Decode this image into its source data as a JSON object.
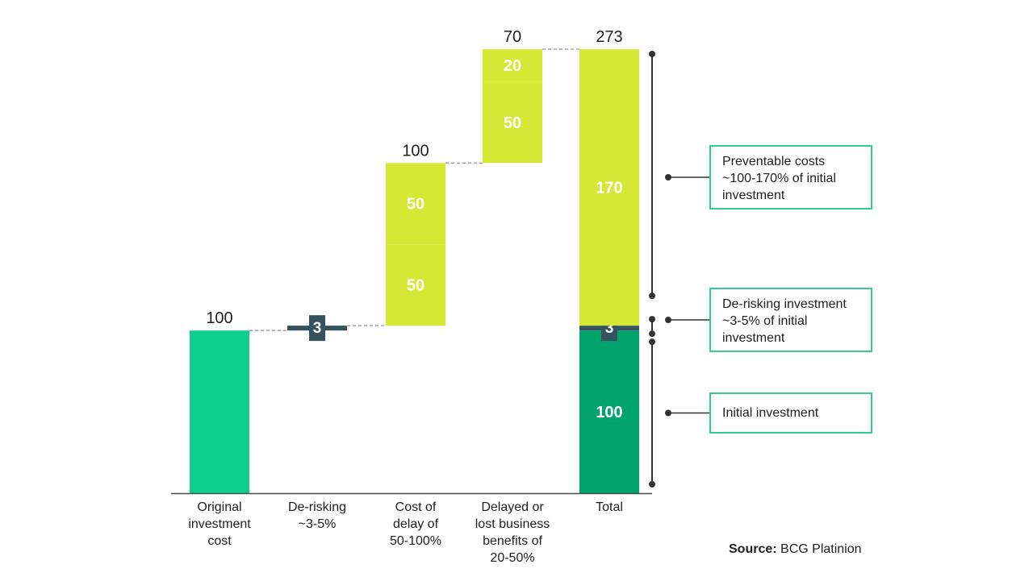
{
  "chart_data": {
    "type": "waterfall",
    "title": "",
    "xlabel": "",
    "ylabel": "",
    "ylim": [
      0,
      273
    ],
    "colors": {
      "initial": "#0fcf8f",
      "initial_dark": "#00a36c",
      "cost": "#d4e835",
      "derisk": "#36525f",
      "connector": "#9aa7ad",
      "bracket": "#333333",
      "legend_border": "#2fce8d"
    },
    "categories": [
      {
        "key": "original",
        "lines": [
          "Original",
          "investment",
          "cost"
        ],
        "total_label": "100",
        "segments": [
          {
            "start": 0,
            "value": 100,
            "kind": "initial",
            "label": ""
          }
        ]
      },
      {
        "key": "derisking",
        "lines": [
          "De-risking",
          "~3-5%"
        ],
        "total_label": "",
        "segments": [
          {
            "start": 100,
            "value": 3,
            "kind": "derisk",
            "label": "3"
          }
        ]
      },
      {
        "key": "delay",
        "lines": [
          "Cost of",
          "delay of",
          "50-100%"
        ],
        "total_label": "100",
        "segments": [
          {
            "start": 103,
            "value": 50,
            "kind": "cost",
            "label": "50"
          },
          {
            "start": 153,
            "value": 50,
            "kind": "cost",
            "label": "50"
          }
        ]
      },
      {
        "key": "benefits",
        "lines": [
          "Delayed or",
          "lost business",
          "benefits of",
          "20-50%"
        ],
        "total_label": "70",
        "segments": [
          {
            "start": 203,
            "value": 50,
            "kind": "cost",
            "label": "50"
          },
          {
            "start": 253,
            "value": 20,
            "kind": "cost",
            "label": "20"
          }
        ]
      },
      {
        "key": "total",
        "lines": [
          "Total"
        ],
        "total_label": "273",
        "segments": [
          {
            "start": 0,
            "value": 100,
            "kind": "initial_dark",
            "label": "100"
          },
          {
            "start": 100,
            "value": 3,
            "kind": "derisk",
            "label": "3"
          },
          {
            "start": 103,
            "value": 170,
            "kind": "cost",
            "label": "170"
          }
        ]
      }
    ],
    "legend": [
      {
        "key": "preventable",
        "range": [
          103,
          273
        ],
        "lines": [
          "Preventable costs",
          "~100-170% of initial",
          "investment"
        ]
      },
      {
        "key": "derisking",
        "range": [
          100,
          103
        ],
        "lines": [
          "De-risking investment",
          "~3-5% of initial",
          "investment"
        ]
      },
      {
        "key": "initial",
        "range": [
          0,
          100
        ],
        "lines": [
          "Initial investment"
        ]
      }
    ]
  },
  "source": {
    "label": "Source:",
    "text": "BCG Platinion"
  }
}
